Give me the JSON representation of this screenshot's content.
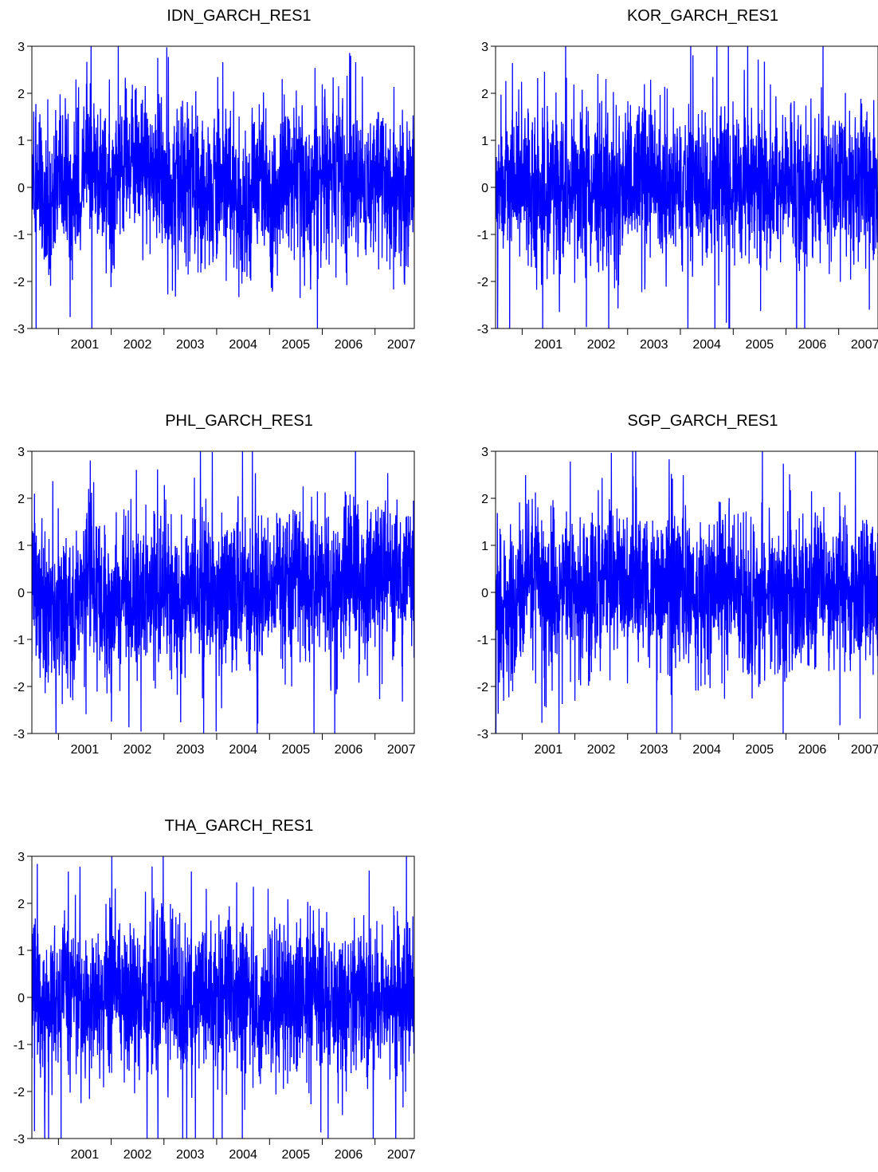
{
  "chart_data": [
    {
      "type": "line",
      "title": "IDN_GARCH_RES1",
      "xlabel": "",
      "ylabel": "",
      "ylim": [
        -3,
        3
      ],
      "y_ticks": [
        "3",
        "2",
        "1",
        "0",
        "-1",
        "-2",
        "-3"
      ],
      "x_ticks": [
        "2001",
        "2002",
        "2003",
        "2004",
        "2005",
        "2006",
        "2007"
      ],
      "xlim": [
        "2000-07-01",
        "2007-09-30"
      ],
      "frequency": "daily",
      "series_color": "#0000ff",
      "grid": false,
      "series": [
        {
          "x": [
            "2000-07",
            "2000-10",
            "2001-01",
            "2001-04",
            "2001-07",
            "2001-10",
            "2002-01",
            "2002-04",
            "2002-07",
            "2002-10",
            "2003-01",
            "2003-04",
            "2003-07",
            "2003-10",
            "2004-01",
            "2004-04",
            "2004-07",
            "2004-10",
            "2005-01",
            "2005-04",
            "2005-07",
            "2005-10",
            "2006-01",
            "2006-04",
            "2006-07",
            "2006-10",
            "2007-01",
            "2007-04",
            "2007-07",
            "2007-09"
          ],
          "values": [
            0.1,
            -0.4,
            0.3,
            -0.2,
            0.5,
            0.2,
            -0.1,
            0.6,
            0.8,
            0.3,
            -0.2,
            0.1,
            0.4,
            -0.3,
            0.2,
            0.0,
            -0.4,
            0.2,
            -0.1,
            0.3,
            0.1,
            -0.2,
            0.2,
            0.4,
            0.1,
            -0.1,
            0.3,
            0.0,
            -0.3,
            0.2
          ]
        }
      ]
    },
    {
      "type": "line",
      "title": "KOR_GARCH_RES1",
      "xlabel": "",
      "ylabel": "",
      "ylim": [
        -3,
        3
      ],
      "y_ticks": [
        "3",
        "2",
        "1",
        "0",
        "-1",
        "-2",
        "-3"
      ],
      "x_ticks": [
        "2001",
        "2002",
        "2003",
        "2004",
        "2005",
        "2006",
        "2007"
      ],
      "xlim": [
        "2000-07-01",
        "2007-09-30"
      ],
      "frequency": "daily",
      "series_color": "#0000ff",
      "grid": false,
      "series": [
        {
          "x": [
            "2000-07",
            "2000-10",
            "2001-01",
            "2001-04",
            "2001-07",
            "2001-10",
            "2002-01",
            "2002-04",
            "2002-07",
            "2002-10",
            "2003-01",
            "2003-04",
            "2003-07",
            "2003-10",
            "2004-01",
            "2004-04",
            "2004-07",
            "2004-10",
            "2005-01",
            "2005-04",
            "2005-07",
            "2005-10",
            "2006-01",
            "2006-04",
            "2006-07",
            "2006-10",
            "2007-01",
            "2007-04",
            "2007-07",
            "2007-09"
          ],
          "values": [
            -0.2,
            0.3,
            0.1,
            -0.3,
            0.2,
            0.0,
            -0.2,
            0.4,
            0.1,
            -0.1,
            0.2,
            0.3,
            0.0,
            -0.2,
            0.1,
            0.2,
            -0.3,
            0.1,
            0.0,
            0.2,
            -0.1,
            0.1,
            0.3,
            -0.2,
            0.1,
            0.0,
            0.2,
            -0.1,
            0.1,
            -0.3
          ]
        }
      ]
    },
    {
      "type": "line",
      "title": "PHL_GARCH_RES1",
      "xlabel": "",
      "ylabel": "",
      "ylim": [
        -3,
        3
      ],
      "y_ticks": [
        "3",
        "2",
        "1",
        "0",
        "-1",
        "-2",
        "-3"
      ],
      "x_ticks": [
        "2001",
        "2002",
        "2003",
        "2004",
        "2005",
        "2006",
        "2007"
      ],
      "xlim": [
        "2000-07-01",
        "2007-09-30"
      ],
      "frequency": "daily",
      "series_color": "#0000ff",
      "grid": false,
      "series": [
        {
          "x": [
            "2000-07",
            "2000-10",
            "2001-01",
            "2001-04",
            "2001-07",
            "2001-10",
            "2002-01",
            "2002-04",
            "2002-07",
            "2002-10",
            "2003-01",
            "2003-04",
            "2003-07",
            "2003-10",
            "2004-01",
            "2004-04",
            "2004-07",
            "2004-10",
            "2005-01",
            "2005-04",
            "2005-07",
            "2005-10",
            "2006-01",
            "2006-04",
            "2006-07",
            "2006-10",
            "2007-01",
            "2007-04",
            "2007-07",
            "2007-09"
          ],
          "values": [
            0.4,
            -0.6,
            -0.2,
            -0.4,
            0.1,
            -0.2,
            -0.3,
            0.0,
            -0.2,
            -0.1,
            0.1,
            -0.3,
            0.0,
            0.1,
            -0.2,
            0.2,
            0.0,
            -0.1,
            0.3,
            0.2,
            0.1,
            0.3,
            0.2,
            0.0,
            0.4,
            0.2,
            0.3,
            0.5,
            0.2,
            0.6
          ]
        }
      ]
    },
    {
      "type": "line",
      "title": "SGP_GARCH_RES1",
      "xlabel": "",
      "ylabel": "",
      "ylim": [
        -3,
        3
      ],
      "y_ticks": [
        "3",
        "2",
        "1",
        "0",
        "-1",
        "-2",
        "-3"
      ],
      "x_ticks": [
        "2001",
        "2002",
        "2003",
        "2004",
        "2005",
        "2006",
        "2007"
      ],
      "xlim": [
        "2000-07-01",
        "2007-09-30"
      ],
      "frequency": "daily",
      "series_color": "#0000ff",
      "grid": false,
      "series": [
        {
          "x": [
            "2000-07",
            "2000-10",
            "2001-01",
            "2001-04",
            "2001-07",
            "2001-10",
            "2002-01",
            "2002-04",
            "2002-07",
            "2002-10",
            "2003-01",
            "2003-04",
            "2003-07",
            "2003-10",
            "2004-01",
            "2004-04",
            "2004-07",
            "2004-10",
            "2005-01",
            "2005-04",
            "2005-07",
            "2005-10",
            "2006-01",
            "2006-04",
            "2006-07",
            "2006-10",
            "2007-01",
            "2007-04",
            "2007-07",
            "2007-09"
          ],
          "values": [
            -0.3,
            -0.5,
            0.4,
            0.2,
            -0.1,
            0.0,
            0.1,
            -0.2,
            0.2,
            0.1,
            0.0,
            0.3,
            -0.1,
            0.1,
            0.2,
            -0.2,
            0.0,
            0.1,
            0.2,
            -0.1,
            0.0,
            0.2,
            0.1,
            -0.2,
            0.1,
            0.0,
            0.2,
            0.1,
            0.0,
            -0.1
          ]
        }
      ]
    },
    {
      "type": "line",
      "title": "THA_GARCH_RES1",
      "xlabel": "",
      "ylabel": "",
      "ylim": [
        -3,
        3
      ],
      "y_ticks": [
        "3",
        "2",
        "1",
        "0",
        "-1",
        "-2",
        "-3"
      ],
      "x_ticks": [
        "2001",
        "2002",
        "2003",
        "2004",
        "2005",
        "2006",
        "2007"
      ],
      "xlim": [
        "2000-07-01",
        "2007-09-30"
      ],
      "frequency": "daily",
      "series_color": "#0000ff",
      "grid": false,
      "series": [
        {
          "x": [
            "2000-07",
            "2000-10",
            "2001-01",
            "2001-04",
            "2001-07",
            "2001-10",
            "2002-01",
            "2002-04",
            "2002-07",
            "2002-10",
            "2003-01",
            "2003-04",
            "2003-07",
            "2003-10",
            "2004-01",
            "2004-04",
            "2004-07",
            "2004-10",
            "2005-01",
            "2005-04",
            "2005-07",
            "2005-10",
            "2006-01",
            "2006-04",
            "2006-07",
            "2006-10",
            "2007-01",
            "2007-04",
            "2007-07",
            "2007-09"
          ],
          "values": [
            0.2,
            -0.4,
            0.0,
            0.3,
            -0.2,
            0.1,
            0.2,
            -0.1,
            0.0,
            0.2,
            0.1,
            -0.2,
            0.0,
            0.1,
            -0.1,
            0.2,
            0.0,
            -0.3,
            -0.2,
            0.1,
            0.0,
            0.2,
            0.1,
            -0.1,
            0.0,
            0.1,
            -0.1,
            0.0,
            0.1,
            -0.2
          ]
        }
      ]
    }
  ]
}
